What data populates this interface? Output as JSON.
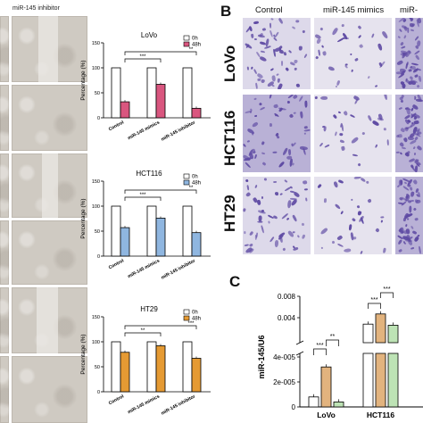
{
  "panel_a": {
    "letter": "",
    "column_label": "miR-145 inhibitor"
  },
  "panel_b": {
    "letter": "B",
    "columns": [
      "Control",
      "miR-145 mimics",
      "miR-"
    ],
    "rows": [
      "LoVo",
      "HCT116",
      "HT29"
    ]
  },
  "panel_c": {
    "letter": "C"
  },
  "colors": {
    "lovo_48h": "#d9567f",
    "hct116_48h": "#8fb6e0",
    "ht29_48h": "#e59a33",
    "bar_0h": "#ffffff",
    "c_white": "#ffffff",
    "c_tan": "#e2b37e",
    "c_green": "#bde3b5"
  },
  "chart_data": [
    {
      "type": "bar",
      "title": "LoVo",
      "ylabel": "Percentage (%)",
      "ylim": [
        0,
        150
      ],
      "yticks": [
        "0",
        "50",
        "100",
        "150"
      ],
      "categories": [
        "Control",
        "miR-145 mimics",
        "miR-145 inhibitor"
      ],
      "series": [
        {
          "name": "0h",
          "values": [
            100,
            100,
            100
          ]
        },
        {
          "name": "48h",
          "values": [
            32,
            67,
            19
          ]
        }
      ],
      "significance": [
        "***",
        "**"
      ],
      "legend": "top-right"
    },
    {
      "type": "bar",
      "title": "HCT116",
      "ylabel": "Percentage (%)",
      "ylim": [
        0,
        150
      ],
      "yticks": [
        "0",
        "50",
        "100",
        "150"
      ],
      "categories": [
        "Control",
        "miR-145 mimics",
        "miR-145 inhibitor"
      ],
      "series": [
        {
          "name": "0h",
          "values": [
            100,
            100,
            100
          ]
        },
        {
          "name": "48h",
          "values": [
            57,
            76,
            47
          ]
        }
      ],
      "significance": [
        "***",
        "**"
      ],
      "legend": "top-right"
    },
    {
      "type": "bar",
      "title": "HT29",
      "ylabel": "Percentage (%)",
      "ylim": [
        0,
        150
      ],
      "yticks": [
        "0",
        "50",
        "100",
        "150"
      ],
      "categories": [
        "Control",
        "miR-145 mimics",
        "miR-145 inhibitor"
      ],
      "series": [
        {
          "name": "0h",
          "values": [
            100,
            100,
            100
          ]
        },
        {
          "name": "48h",
          "values": [
            79,
            92,
            67
          ]
        }
      ],
      "significance": [
        "**",
        "***"
      ],
      "legend": "top-right"
    },
    {
      "type": "bar",
      "ylabel": "miR-145/U6",
      "yticks": [
        "0",
        "2e-005",
        "4e-005",
        "0.004",
        "0.008"
      ],
      "categories": [
        "LoVo",
        "HCT116"
      ],
      "series": [
        {
          "values": [
            8e-06,
            0.0028
          ]
        },
        {
          "values": [
            3.2e-05,
            0.0047
          ]
        },
        {
          "values": [
            4e-06,
            0.0026
          ]
        }
      ],
      "significance": [
        "***",
        "**",
        "***",
        "***"
      ]
    }
  ]
}
